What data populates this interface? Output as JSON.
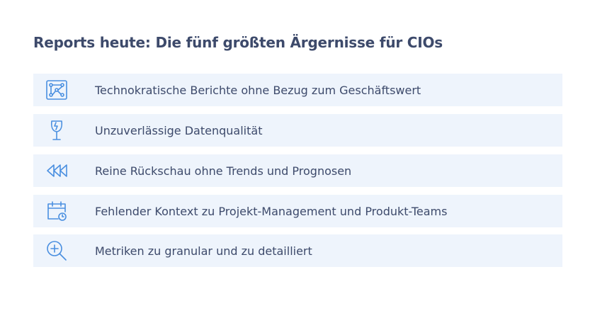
{
  "title": "Reports heute: Die fünf größten Ärgernisse für CIOs",
  "items": [
    {
      "label": "Technokratische Berichte ohne Bezug zum Geschäftswert"
    },
    {
      "label": "Unzuverlässige Datenqualität"
    },
    {
      "label": "Reine Rückschau ohne Trends und Prognosen"
    },
    {
      "label": "Fehlender Kontext zu Projekt-Management und Produkt-Teams"
    },
    {
      "label": "Metriken zu granular und zu detailliert"
    }
  ]
}
